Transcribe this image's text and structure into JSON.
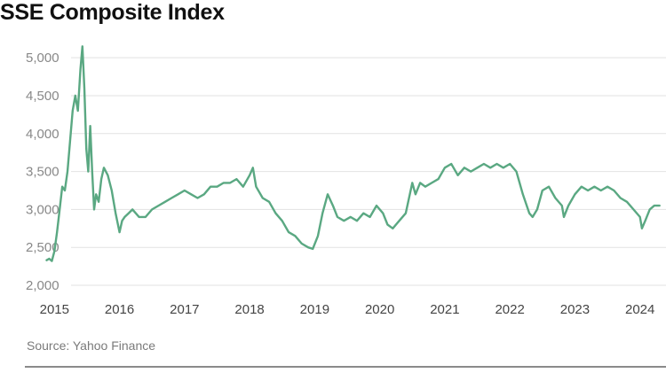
{
  "chart_data": {
    "type": "line",
    "title": "SSE Composite Index",
    "source": "Source: Yahoo Finance",
    "ylim": [
      2000,
      5200
    ],
    "y_ticks": [
      {
        "value": 2000,
        "label": "2,000"
      },
      {
        "value": 2500,
        "label": "2,500"
      },
      {
        "value": 3000,
        "label": "3,000"
      },
      {
        "value": 3500,
        "label": "3,500"
      },
      {
        "value": 4000,
        "label": "4,000"
      },
      {
        "value": 4500,
        "label": "4,500"
      },
      {
        "value": 5000,
        "label": "5,000"
      }
    ],
    "x_ticks": [
      {
        "value": 2015,
        "label": "2015"
      },
      {
        "value": 2016,
        "label": "2016"
      },
      {
        "value": 2017,
        "label": "2017"
      },
      {
        "value": 2018,
        "label": "2018"
      },
      {
        "value": 2019,
        "label": "2019"
      },
      {
        "value": 2020,
        "label": "2020"
      },
      {
        "value": 2021,
        "label": "2021"
      },
      {
        "value": 2022,
        "label": "2022"
      },
      {
        "value": 2023,
        "label": "2023"
      },
      {
        "value": 2024,
        "label": "2024"
      }
    ],
    "xlim": [
      2014.6,
      2024.4
    ],
    "grid": "horizontal",
    "line_color": "#5aa882",
    "series": [
      {
        "x": [
          2014.88,
          2014.92,
          2014.96,
          2015.0,
          2015.04,
          2015.08,
          2015.12,
          2015.16,
          2015.2,
          2015.24,
          2015.28,
          2015.32,
          2015.36,
          2015.4,
          2015.43,
          2015.46,
          2015.49,
          2015.52,
          2015.55,
          2015.58,
          2015.61,
          2015.64,
          2015.68,
          2015.72,
          2015.76,
          2015.82,
          2015.88,
          2015.94,
          2016.0,
          2016.04,
          2016.08,
          2016.14,
          2016.2,
          2016.3,
          2016.4,
          2016.5,
          2016.6,
          2016.7,
          2016.8,
          2016.9,
          2017.0,
          2017.1,
          2017.2,
          2017.3,
          2017.4,
          2017.5,
          2017.6,
          2017.7,
          2017.8,
          2017.9,
          2018.0,
          2018.05,
          2018.1,
          2018.2,
          2018.3,
          2018.4,
          2018.5,
          2018.6,
          2018.7,
          2018.8,
          2018.9,
          2018.97,
          2019.05,
          2019.12,
          2019.2,
          2019.28,
          2019.35,
          2019.45,
          2019.55,
          2019.65,
          2019.75,
          2019.85,
          2019.95,
          2020.05,
          2020.12,
          2020.2,
          2020.3,
          2020.4,
          2020.5,
          2020.55,
          2020.62,
          2020.7,
          2020.8,
          2020.9,
          2021.0,
          2021.1,
          2021.2,
          2021.3,
          2021.4,
          2021.5,
          2021.6,
          2021.7,
          2021.8,
          2021.9,
          2022.0,
          2022.1,
          2022.2,
          2022.3,
          2022.35,
          2022.42,
          2022.5,
          2022.6,
          2022.7,
          2022.8,
          2022.83,
          2022.9,
          2023.0,
          2023.1,
          2023.2,
          2023.3,
          2023.4,
          2023.5,
          2023.6,
          2023.7,
          2023.8,
          2023.9,
          2024.0,
          2024.03,
          2024.08,
          2024.15,
          2024.22,
          2024.3
        ],
        "y": [
          2330,
          2350,
          2320,
          2450,
          2700,
          3000,
          3300,
          3250,
          3500,
          3900,
          4300,
          4500,
          4300,
          4850,
          5150,
          4600,
          3800,
          3500,
          4100,
          3500,
          3000,
          3200,
          3100,
          3400,
          3550,
          3450,
          3250,
          2950,
          2700,
          2850,
          2900,
          2950,
          3000,
          2900,
          2900,
          3000,
          3050,
          3100,
          3150,
          3200,
          3250,
          3200,
          3150,
          3200,
          3300,
          3300,
          3350,
          3350,
          3400,
          3300,
          3450,
          3550,
          3300,
          3150,
          3100,
          2950,
          2850,
          2700,
          2650,
          2550,
          2500,
          2480,
          2650,
          2950,
          3200,
          3050,
          2900,
          2850,
          2900,
          2850,
          2950,
          2900,
          3050,
          2950,
          2800,
          2750,
          2850,
          2950,
          3350,
          3200,
          3350,
          3300,
          3350,
          3400,
          3550,
          3600,
          3450,
          3550,
          3500,
          3550,
          3600,
          3550,
          3600,
          3550,
          3600,
          3500,
          3200,
          2950,
          2900,
          3000,
          3250,
          3300,
          3150,
          3050,
          2900,
          3050,
          3200,
          3300,
          3250,
          3300,
          3250,
          3300,
          3250,
          3150,
          3100,
          3000,
          2900,
          2750,
          2850,
          3000,
          3050,
          3050
        ]
      }
    ]
  }
}
